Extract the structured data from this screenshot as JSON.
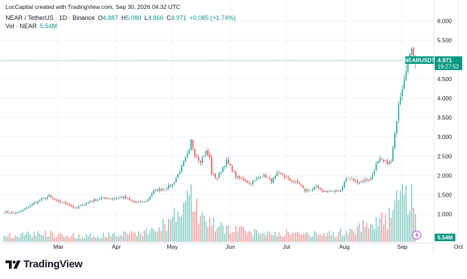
{
  "attribution": "LocCapital created with TradingView.com, Sep 30, 2026 04:32 UTC",
  "header": {
    "symbol_line": "NEAR / TetherUS · 1D · Binance",
    "o_label": "O",
    "o_value": "4.887",
    "h_label": "H",
    "h_value": "5.089",
    "l_label": "L",
    "l_value": "4.866",
    "c_label": "C",
    "c_value": "4.971",
    "change": "+0.085 (+1.74%)",
    "vol_label": "Vol · NEAR",
    "vol_value": "5.54M"
  },
  "price_tag": {
    "symbol": "NEARUSDT",
    "price": "4.971",
    "countdown": "19:27:52"
  },
  "volume_tag": "5.54M",
  "brand": "TradingView",
  "colors": {
    "up": "#26a69a",
    "down": "#ef5350",
    "vol_up": "#89cfc5",
    "vol_down": "#f3a5a3",
    "tag": "#089981"
  },
  "chart_data": {
    "type": "candlestick",
    "symbol": "NEAR / TetherUS",
    "interval": "1D",
    "exchange": "Binance",
    "y_ticks": [
      "6.000",
      "5.500",
      "5.000",
      "4.500",
      "4.000",
      "3.500",
      "3.000",
      "2.500",
      "2.000",
      "1.500",
      "1.000"
    ],
    "x_ticks": [
      "Mar",
      "Apr",
      "May",
      "Jun",
      "Jul",
      "Aug",
      "Sep",
      "Oct"
    ],
    "ylim": [
      0.85,
      6.1
    ],
    "last_price": 4.971,
    "anchors": [
      [
        0,
        1.06
      ],
      [
        6,
        1.02
      ],
      [
        10,
        1.1
      ],
      [
        16,
        1.28
      ],
      [
        20,
        1.38
      ],
      [
        24,
        1.47
      ],
      [
        28,
        1.33
      ],
      [
        34,
        1.27
      ],
      [
        38,
        1.15
      ],
      [
        42,
        1.24
      ],
      [
        46,
        1.33
      ],
      [
        52,
        1.42
      ],
      [
        58,
        1.4
      ],
      [
        64,
        1.44
      ],
      [
        70,
        1.3
      ],
      [
        76,
        1.33
      ],
      [
        80,
        1.6
      ],
      [
        86,
        1.67
      ],
      [
        90,
        1.77
      ],
      [
        93,
        2.02
      ],
      [
        96,
        2.33
      ],
      [
        99,
        2.62
      ],
      [
        100,
        2.9
      ],
      [
        102,
        2.55
      ],
      [
        105,
        2.38
      ],
      [
        108,
        2.62
      ],
      [
        110,
        2.45
      ],
      [
        111,
        2.04
      ],
      [
        114,
        1.93
      ],
      [
        117,
        2.22
      ],
      [
        119,
        2.37
      ],
      [
        121,
        2.22
      ],
      [
        124,
        1.97
      ],
      [
        126,
        1.92
      ],
      [
        129,
        1.88
      ],
      [
        131,
        1.8
      ],
      [
        134,
        1.85
      ],
      [
        137,
        2.0
      ],
      [
        140,
        1.97
      ],
      [
        143,
        1.85
      ],
      [
        146,
        2.03
      ],
      [
        149,
        2.02
      ],
      [
        152,
        1.9
      ],
      [
        155,
        1.85
      ],
      [
        158,
        1.78
      ],
      [
        161,
        1.6
      ],
      [
        164,
        1.64
      ],
      [
        167,
        1.7
      ],
      [
        170,
        1.58
      ],
      [
        173,
        1.6
      ],
      [
        176,
        1.57
      ],
      [
        180,
        1.62
      ],
      [
        183,
        1.93
      ],
      [
        186,
        1.9
      ],
      [
        188,
        1.85
      ],
      [
        190,
        1.83
      ],
      [
        193,
        1.88
      ],
      [
        196,
        1.9
      ],
      [
        199,
        2.28
      ],
      [
        201,
        2.4
      ],
      [
        204,
        2.33
      ],
      [
        207,
        2.34
      ],
      [
        209,
        3.05
      ],
      [
        211,
        3.9
      ],
      [
        213,
        4.3
      ],
      [
        215,
        4.8
      ],
      [
        217,
        5.06
      ],
      [
        218,
        5.35
      ],
      [
        219,
        4.93
      ],
      [
        220,
        4.97
      ]
    ],
    "volume_anchors": [
      [
        0,
        0.12
      ],
      [
        20,
        0.18
      ],
      [
        40,
        0.12
      ],
      [
        60,
        0.15
      ],
      [
        80,
        0.22
      ],
      [
        90,
        0.45
      ],
      [
        100,
        0.9
      ],
      [
        105,
        0.55
      ],
      [
        112,
        0.35
      ],
      [
        130,
        0.2
      ],
      [
        150,
        0.18
      ],
      [
        170,
        0.15
      ],
      [
        185,
        0.22
      ],
      [
        195,
        0.4
      ],
      [
        205,
        0.45
      ],
      [
        212,
        0.9
      ],
      [
        218,
        1.0
      ],
      [
        220,
        0.55
      ]
    ]
  }
}
